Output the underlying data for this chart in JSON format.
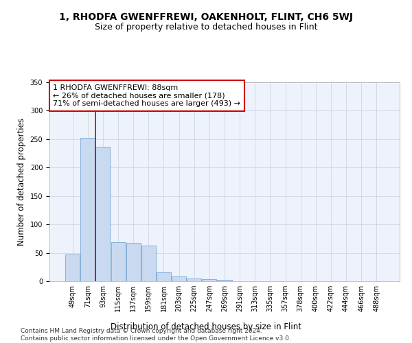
{
  "title": "1, RHODFA GWENFFREWI, OAKENHOLT, FLINT, CH6 5WJ",
  "subtitle": "Size of property relative to detached houses in Flint",
  "xlabel": "Distribution of detached houses by size in Flint",
  "ylabel": "Number of detached properties",
  "bin_labels": [
    "49sqm",
    "71sqm",
    "93sqm",
    "115sqm",
    "137sqm",
    "159sqm",
    "181sqm",
    "203sqm",
    "225sqm",
    "247sqm",
    "269sqm",
    "291sqm",
    "313sqm",
    "335sqm",
    "357sqm",
    "378sqm",
    "400sqm",
    "422sqm",
    "444sqm",
    "466sqm",
    "488sqm"
  ],
  "bar_values": [
    47,
    252,
    237,
    69,
    68,
    63,
    16,
    8,
    5,
    4,
    3,
    0,
    0,
    0,
    0,
    0,
    0,
    0,
    0,
    0,
    0
  ],
  "bar_color": "#c9d9f0",
  "bar_edge_color": "#7aa8d4",
  "red_line_x": 1.5,
  "annotation_box_text": "1 RHODFA GWENFFREWI: 88sqm\n← 26% of detached houses are smaller (178)\n71% of semi-detached houses are larger (493) →",
  "annotation_box_color": "#cc0000",
  "red_line_color": "#cc0000",
  "ylim": [
    0,
    350
  ],
  "yticks": [
    0,
    50,
    100,
    150,
    200,
    250,
    300,
    350
  ],
  "footnote": "Contains HM Land Registry data © Crown copyright and database right 2024.\nContains public sector information licensed under the Open Government Licence v3.0.",
  "bg_color": "#eef2fb",
  "grid_color": "#c8cfe0",
  "title_fontsize": 10,
  "subtitle_fontsize": 9,
  "axis_label_fontsize": 8.5,
  "tick_fontsize": 7,
  "annotation_fontsize": 8,
  "footnote_fontsize": 6.5
}
